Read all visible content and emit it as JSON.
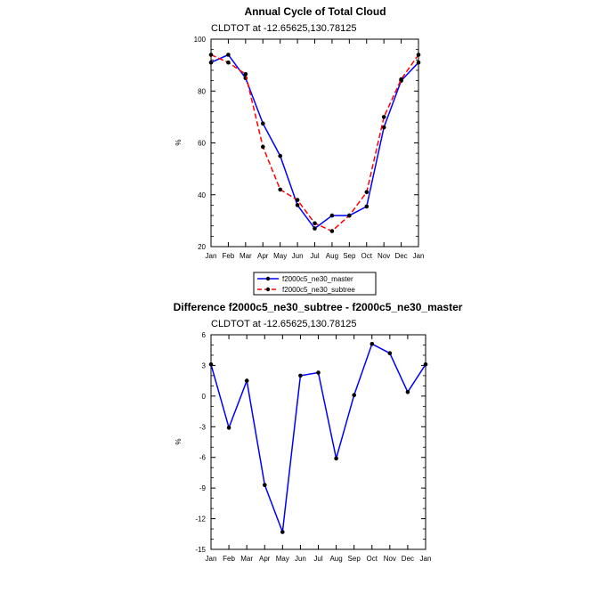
{
  "chart_data": [
    {
      "type": "line",
      "title": "Annual Cycle of Total Cloud",
      "subtitle": "CLDTOT at -12.65625,130.78125",
      "ylabel": "%",
      "ylim": [
        20,
        100
      ],
      "yticks": [
        20,
        40,
        60,
        80,
        100
      ],
      "categories": [
        "Jan",
        "Feb",
        "Mar",
        "Apr",
        "May",
        "Jun",
        "Jul",
        "Aug",
        "Sep",
        "Oct",
        "Nov",
        "Dec",
        "Jan"
      ],
      "legend_position": "below",
      "series": [
        {
          "name": "f2000c5_ne30_master",
          "color": "#0000ff",
          "dash": "solid",
          "values": [
            91,
            94,
            85,
            67.5,
            55,
            36,
            27,
            32,
            32,
            35.5,
            66,
            84,
            91
          ]
        },
        {
          "name": "f2000c5_ne30_subtree",
          "color": "#ff0000",
          "dash": "dashed",
          "values": [
            94,
            91,
            86.5,
            58.5,
            42,
            38,
            29,
            26,
            32,
            41,
            70,
            84.5,
            94
          ]
        }
      ]
    },
    {
      "type": "line",
      "title": "Difference f2000c5_ne30_subtree - f2000c5_ne30_master",
      "subtitle": "CLDTOT at -12.65625,130.78125",
      "ylabel": "%",
      "ylim": [
        -15,
        6
      ],
      "yticks": [
        -15,
        -12,
        -9,
        -6,
        -3,
        0,
        3,
        6
      ],
      "categories": [
        "Jan",
        "Feb",
        "Mar",
        "Apr",
        "May",
        "Jun",
        "Jul",
        "Aug",
        "Sep",
        "Oct",
        "Nov",
        "Dec",
        "Jan"
      ],
      "series": [
        {
          "color": "#0000ff",
          "dash": "solid",
          "values": [
            3.1,
            -3.1,
            1.5,
            -8.7,
            -13.3,
            2.0,
            2.3,
            -6.1,
            0.1,
            5.1,
            4.2,
            0.4,
            3.1
          ]
        }
      ]
    }
  ]
}
